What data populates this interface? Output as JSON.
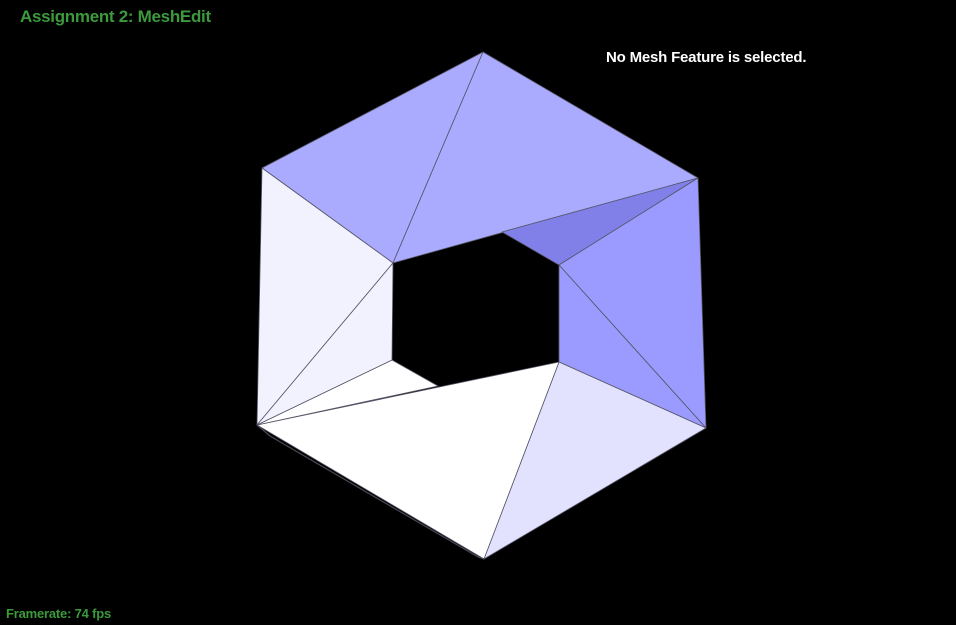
{
  "app": {
    "title": "Assignment 2: MeshEdit"
  },
  "status": {
    "selection": "No Mesh Feature is selected."
  },
  "framerate": {
    "label": "Framerate:",
    "value": "74",
    "unit": "fps"
  },
  "colors": {
    "title_green": "#3c9a3c",
    "background": "#000000",
    "face_blue_light": "#aaaaff",
    "face_blue_mid": "#9a9aff",
    "face_blue_dark": "#8080e8",
    "face_lavender": "#e2e2ff",
    "face_pale": "#f2f2ff",
    "face_white": "#ffffff"
  }
}
